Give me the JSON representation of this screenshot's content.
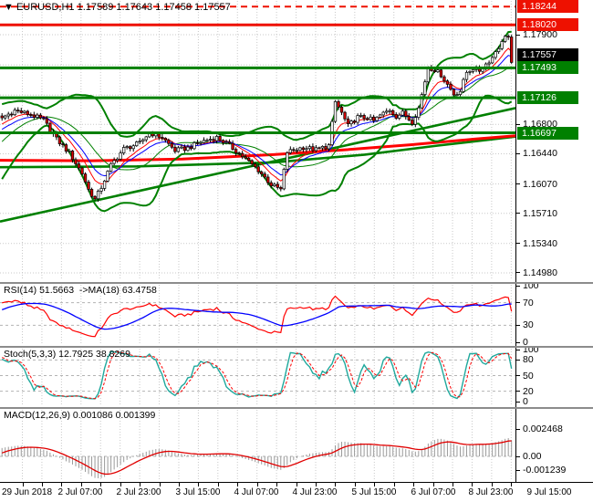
{
  "window_title": {
    "symbol_marker": "▼",
    "text": "EURUSD,H1 1.17589 1.17643 1.17458 1.17557"
  },
  "colors": {
    "background": "#ffffff",
    "grid": "#c9c9c9",
    "level_grid": "#b3b3b3",
    "candle_outline": "#000000",
    "bull_body": "#ffffff",
    "bear_body": "#d40000",
    "bollinger": "#008000",
    "ma_fast_red": "#ff0000",
    "ma_mid_blue": "#0000ff",
    "long_ma_red": "#ff0000",
    "trendline_green": "#008000",
    "sr_green": "#008000",
    "sr_red": "#ee1100",
    "current_price_bg": "#000000",
    "rsi_line": "#ff0000",
    "rsi_ma_line": "#0000ff",
    "stoch_main": "#1fa99d",
    "stoch_signal": "#ff0000",
    "macd_hist": "#9a9a9a",
    "macd_signal": "#e00000"
  },
  "price_scale": {
    "labeled_ticks": [
      {
        "value": 1.179,
        "label": "1.17900"
      },
      {
        "value": 1.168,
        "label": "1.16800"
      },
      {
        "value": 1.1644,
        "label": "1.16440"
      },
      {
        "value": 1.1607,
        "label": "1.16070"
      },
      {
        "value": 1.1571,
        "label": "1.15710"
      },
      {
        "value": 1.1534,
        "label": "1.15340"
      },
      {
        "value": 1.1498,
        "label": "1.14980"
      }
    ],
    "gridline_values": [
      1.179,
      1.1753,
      1.1716,
      1.168,
      1.1644,
      1.1607,
      1.1571,
      1.1534,
      1.1498
    ]
  },
  "sr_levels": [
    {
      "value": 1.18244,
      "label": "1.18244",
      "line_style": "dashed",
      "color": "#ee1100"
    },
    {
      "value": 1.1802,
      "label": "1.18020",
      "line_style": "solid",
      "color": "#ee1100"
    },
    {
      "value": 1.17493,
      "label": "1.17493",
      "line_style": "solid",
      "color": "#008000"
    },
    {
      "value": 1.17126,
      "label": "1.17126",
      "line_style": "solid",
      "color": "#008000"
    },
    {
      "value": 1.16697,
      "label": "1.16697",
      "line_style": "solid",
      "color": "#008000"
    }
  ],
  "current_price": {
    "value": 1.17557,
    "label": "1.17557"
  },
  "time_axis": {
    "labels": [
      "29 Jun 2018",
      "2 Jul 07:00",
      "2 Jul 23:00",
      "3 Jul 15:00",
      "4 Jul 07:00",
      "4 Jul 23:00",
      "5 Jul 15:00",
      "6 Jul 07:00",
      "8 Jul 23:00",
      "9 Jul 15:00"
    ]
  },
  "panes": {
    "rsi": {
      "header": "RSI(14) 51.5663  ->MA(18) 63.4758",
      "scale_labels": [
        {
          "v": 100,
          "label": "100"
        },
        {
          "v": 70,
          "label": "70"
        },
        {
          "v": 30,
          "label": "30"
        },
        {
          "v": 0,
          "label": "0"
        }
      ],
      "levels": [
        70,
        30
      ]
    },
    "stoch": {
      "header": "Stoch(5,3,3) 12.7925 38.8269",
      "scale_labels": [
        {
          "v": 100,
          "label": "100"
        },
        {
          "v": 80,
          "label": "80"
        },
        {
          "v": 50,
          "label": "50"
        },
        {
          "v": 20,
          "label": "20"
        },
        {
          "v": 0,
          "label": "0"
        }
      ],
      "levels": [
        80,
        50,
        20
      ]
    },
    "macd": {
      "header": "MACD(12,26,9) 0.001086 0.001399",
      "scale_labels": [
        {
          "v": 0.002468,
          "label": "0.002468"
        },
        {
          "v": 0,
          "label": "0.00"
        },
        {
          "v": -0.001239,
          "label": "-0.001239"
        }
      ],
      "levels": [
        0
      ]
    }
  },
  "chart_data": {
    "type": "candlestick",
    "symbol": "EURUSD",
    "timeframe": "H1",
    "current_ohlc": {
      "open": 1.17589,
      "high": 1.17643,
      "low": 1.17458,
      "close": 1.17557
    },
    "candles_count": 160,
    "close_path_anchors": [
      [
        0,
        1.1688
      ],
      [
        4,
        1.1697
      ],
      [
        9,
        1.1692
      ],
      [
        13,
        1.1685
      ],
      [
        17,
        1.1662
      ],
      [
        21,
        1.1645
      ],
      [
        25,
        1.162
      ],
      [
        27,
        1.16
      ],
      [
        29,
        1.1588
      ],
      [
        31,
        1.1603
      ],
      [
        34,
        1.163
      ],
      [
        38,
        1.165
      ],
      [
        43,
        1.1657
      ],
      [
        46,
        1.167
      ],
      [
        50,
        1.1664
      ],
      [
        54,
        1.1648
      ],
      [
        58,
        1.1651
      ],
      [
        63,
        1.166
      ],
      [
        67,
        1.1664
      ],
      [
        71,
        1.1654
      ],
      [
        75,
        1.1641
      ],
      [
        80,
        1.1624
      ],
      [
        84,
        1.1606
      ],
      [
        87,
        1.16
      ],
      [
        89,
        1.1646
      ],
      [
        94,
        1.1652
      ],
      [
        98,
        1.1649
      ],
      [
        102,
        1.1654
      ],
      [
        104,
        1.1708
      ],
      [
        106,
        1.1694
      ],
      [
        108,
        1.1678
      ],
      [
        111,
        1.1689
      ],
      [
        114,
        1.1688
      ],
      [
        116,
        1.1684
      ],
      [
        118,
        1.1691
      ],
      [
        121,
        1.1698
      ],
      [
        123,
        1.169
      ],
      [
        125,
        1.1694
      ],
      [
        128,
        1.1683
      ],
      [
        130,
        1.17
      ],
      [
        132,
        1.1733
      ],
      [
        133,
        1.175
      ],
      [
        135,
        1.1747
      ],
      [
        137,
        1.1741
      ],
      [
        139,
        1.1729
      ],
      [
        141,
        1.1717
      ],
      [
        143,
        1.1721
      ],
      [
        145,
        1.1744
      ],
      [
        147,
        1.1749
      ],
      [
        149,
        1.1746
      ],
      [
        151,
        1.1754
      ],
      [
        153,
        1.1762
      ],
      [
        154,
        1.177
      ],
      [
        156,
        1.178
      ],
      [
        157,
        1.179
      ],
      [
        158,
        1.1787
      ],
      [
        159,
        1.1756
      ]
    ],
    "warmup_path": [
      [
        0,
        1.166
      ],
      [
        20,
        1.1728
      ],
      [
        40,
        1.1612
      ],
      [
        50,
        1.1663
      ],
      [
        59,
        1.1688
      ]
    ],
    "overlays": {
      "bollinger": {
        "period": 20,
        "deviation": 2
      },
      "ema_fast_period": 8,
      "ema_mid_period": 13,
      "long_ma_path": [
        [
          0,
          1.1636
        ],
        [
          100,
          1.16355
        ],
        [
          200,
          1.16375
        ],
        [
          300,
          1.1643
        ],
        [
          380,
          1.1649
        ],
        [
          450,
          1.1655
        ],
        [
          520,
          1.1662
        ],
        [
          565,
          1.1666
        ]
      ],
      "trendlines": [
        {
          "path": [
            [
              0,
              1.1561
            ],
            [
              565,
              1.17
            ]
          ]
        },
        {
          "path": [
            [
              0,
              1.16275
            ],
            [
              150,
              1.16285
            ],
            [
              300,
              1.16335
            ],
            [
              400,
              1.1643
            ],
            [
              480,
              1.1654
            ],
            [
              565,
              1.1665
            ]
          ]
        }
      ]
    },
    "indicators": {
      "rsi": {
        "period": 14,
        "value": 51.5663,
        "ma_period": 18,
        "ma_value": 63.4758
      },
      "stoch": {
        "k": 5,
        "d": 3,
        "slowing": 3,
        "value": 12.7925,
        "signal_value": 38.8269
      },
      "macd": {
        "fast": 12,
        "slow": 26,
        "signal": 9,
        "value": 0.001086,
        "signal_value": 0.001399,
        "scale_max_label": 0.002468,
        "scale_min_label": -0.001239
      }
    }
  }
}
